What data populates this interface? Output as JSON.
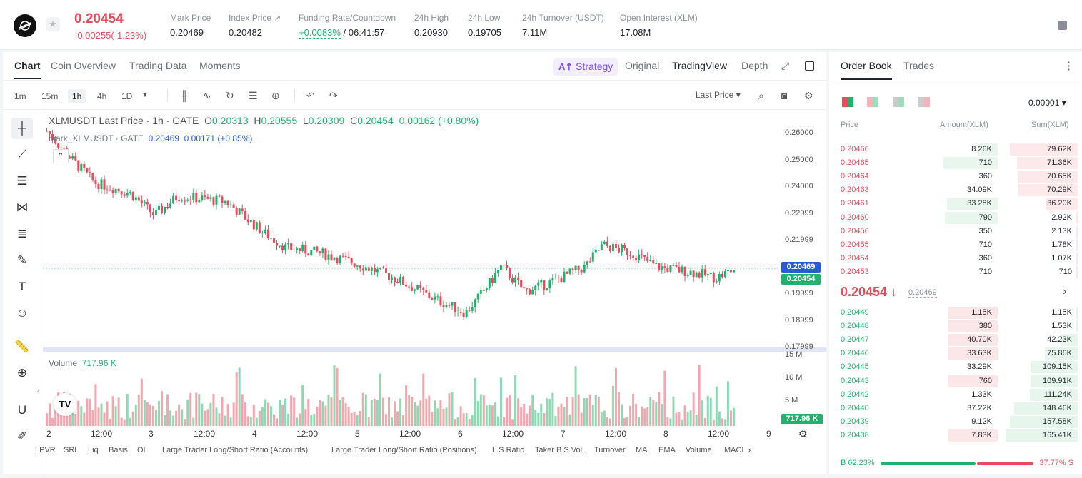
{
  "header": {
    "last_price": "0.20454",
    "change": "-0.00255(-1.23%)",
    "stats": [
      {
        "label": "Mark Price",
        "value": "0.20469"
      },
      {
        "label": "Index Price ↗",
        "value": "0.20482"
      },
      {
        "label": "Funding Rate/Countdown",
        "value_green": "+0.0083%",
        "value": "/ 06:41:57"
      },
      {
        "label": "24h High",
        "value": "0.20930"
      },
      {
        "label": "24h Low",
        "value": "0.19705"
      },
      {
        "label": "24h Turnover (USDT)",
        "value": "7.11M"
      },
      {
        "label": "Open Interest (XLM)",
        "value": "17.08M"
      }
    ]
  },
  "chart_tabs": [
    "Chart",
    "Coin Overview",
    "Trading Data",
    "Moments"
  ],
  "view_tabs": {
    "strategy": "Strategy",
    "original": "Original",
    "tradingview": "TradingView",
    "depth": "Depth"
  },
  "intervals": [
    "1m",
    "15m",
    "1h",
    "4h",
    "1D"
  ],
  "last_price_select": "Last Price ▾",
  "legend": {
    "title": "XLMUSDT Last Price · 1h · GATE",
    "o": "0.20313",
    "h": "0.20555",
    "l": "0.20309",
    "c": "0.20454",
    "chg": "0.00162 (+0.80%)",
    "mark": "mark_XLMUSDT · GATE",
    "mark_val": "0.20469",
    "mark_chg": "0.00171 (+0.85%)"
  },
  "volume": {
    "label": "Volume",
    "value": "717.96 K"
  },
  "y_axis": [
    "0.26000",
    "0.25000",
    "0.24000",
    "0.22999",
    "0.21999",
    "0.20999",
    "0.19999",
    "0.18999",
    "0.17999"
  ],
  "vol_axis": [
    "15 M",
    "10 M",
    "5 M"
  ],
  "mark_badge": "0.20469",
  "last_badge": "0.20454",
  "vol_badge": "717.96 K",
  "x_axis": [
    "2",
    "12:00",
    "3",
    "12:00",
    "4",
    "12:00",
    "5",
    "12:00",
    "6",
    "12:00",
    "7",
    "12:00",
    "8",
    "12:00",
    "9"
  ],
  "indicators": [
    "LPVR",
    "SRL",
    "Liq",
    "Basis",
    "OI",
    "Large Trader Long/Short Ratio (Accounts)",
    "Large Trader Long/Short Ratio (Positions)",
    "L.S Ratio",
    "Taker B.S Vol.",
    "Turnover",
    "MA",
    "EMA",
    "Volume",
    "MACD"
  ],
  "orderbook": {
    "tabs": [
      "Order Book",
      "Trades"
    ],
    "precision": "0.00001 ▾",
    "headers": {
      "price": "Price",
      "amount": "Amount(XLM)",
      "sum": "Sum(XLM)"
    },
    "asks": [
      {
        "p": "0.20466",
        "a": "8.26K",
        "s": "79.62K",
        "af": 0.24,
        "sf": 0.9
      },
      {
        "p": "0.20465",
        "a": "710",
        "s": "71.36K",
        "af": 0.66,
        "sf": 0.8
      },
      {
        "p": "0.20464",
        "a": "360",
        "s": "70.65K",
        "af": 0.0,
        "sf": 0.79
      },
      {
        "p": "0.20463",
        "a": "34.09K",
        "s": "70.29K",
        "af": 0.0,
        "sf": 0.78
      },
      {
        "p": "0.20461",
        "a": "33.28K",
        "s": "36.20K",
        "af": 0.62,
        "sf": 0.42
      },
      {
        "p": "0.20460",
        "a": "790",
        "s": "2.92K",
        "af": 0.64,
        "sf": 0.03
      },
      {
        "p": "0.20456",
        "a": "350",
        "s": "2.13K",
        "af": 0,
        "sf": 0.02
      },
      {
        "p": "0.20455",
        "a": "710",
        "s": "1.78K",
        "af": 0,
        "sf": 0.02
      },
      {
        "p": "0.20454",
        "a": "360",
        "s": "1.07K",
        "af": 0,
        "sf": 0.01
      },
      {
        "p": "0.20453",
        "a": "710",
        "s": "710",
        "af": 0,
        "sf": 0.01
      }
    ],
    "mid_price": "0.20454 ↓",
    "mid_mark": "0.20469",
    "bids": [
      {
        "p": "0.20449",
        "a": "1.15K",
        "s": "1.15K",
        "af": 0.6,
        "sf": 0.01
      },
      {
        "p": "0.20448",
        "a": "380",
        "s": "1.53K",
        "af": 0.6,
        "sf": 0.01
      },
      {
        "p": "0.20447",
        "a": "40.70K",
        "s": "42.23K",
        "af": 0.6,
        "sf": 0.23
      },
      {
        "p": "0.20446",
        "a": "33.63K",
        "s": "75.86K",
        "af": 0.6,
        "sf": 0.43
      },
      {
        "p": "0.20445",
        "a": "33.29K",
        "s": "109.15K",
        "af": 0,
        "sf": 0.62
      },
      {
        "p": "0.20443",
        "a": "760",
        "s": "109.91K",
        "af": 0.6,
        "sf": 0.62
      },
      {
        "p": "0.20442",
        "a": "1.33K",
        "s": "111.24K",
        "af": 0,
        "sf": 0.63
      },
      {
        "p": "0.20440",
        "a": "37.22K",
        "s": "148.46K",
        "af": 0,
        "sf": 0.84
      },
      {
        "p": "0.20439",
        "a": "9.12K",
        "s": "157.58K",
        "af": 0,
        "sf": 0.9
      },
      {
        "p": "0.20438",
        "a": "7.83K",
        "s": "165.41K",
        "af": 0.6,
        "sf": 0.95
      }
    ],
    "buy_ratio": "B 62.23%",
    "sell_ratio": "37.77% S",
    "buy_frac": 0.6223
  },
  "colors": {
    "up": "#20b26c",
    "down": "#e84c5c",
    "accent": "#7b4ef2",
    "mark": "#2a5bd7"
  }
}
